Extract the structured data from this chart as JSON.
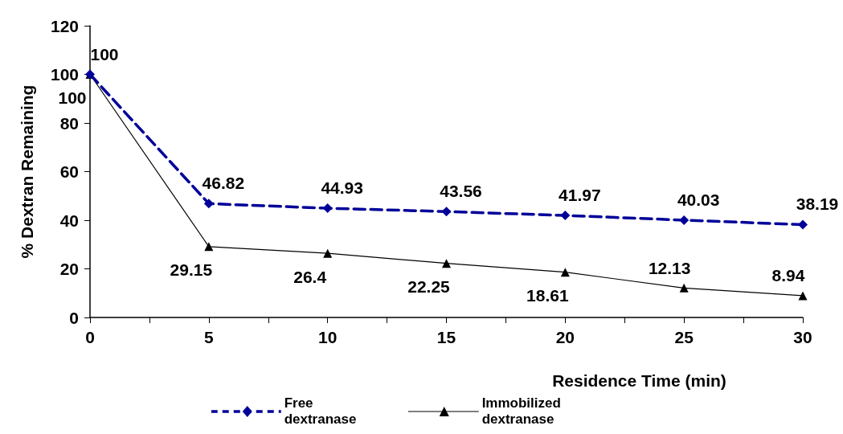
{
  "chart_data": {
    "type": "line",
    "xlabel": "Residence Time (min)",
    "ylabel": "% Dextran Remaining",
    "x": [
      0,
      5,
      10,
      15,
      20,
      25,
      30
    ],
    "series": [
      {
        "name": "Free dextranase",
        "color": "#000099",
        "marker": "diamond",
        "line_style": "dashed",
        "values": [
          100,
          46.82,
          44.93,
          43.56,
          41.97,
          40.03,
          38.19
        ]
      },
      {
        "name": "Immobilized dextranase",
        "color": "#000000",
        "marker": "triangle",
        "line_style": "solid",
        "values": [
          100,
          29.15,
          26.4,
          22.25,
          18.61,
          12.13,
          8.94
        ]
      }
    ],
    "xlim": [
      0,
      30
    ],
    "xticks": [
      0,
      {
        "value": 2.5,
        "label": null
      },
      5,
      {
        "value": 7.5,
        "label": null
      },
      10,
      {
        "value": 12.5,
        "label": null
      },
      15,
      {
        "value": 17.5,
        "label": null
      },
      20,
      {
        "value": 22.5,
        "label": null
      },
      25,
      {
        "value": 27.5,
        "label": null
      },
      30
    ],
    "ylim": [
      0,
      120
    ],
    "yticks": [
      0,
      20,
      40,
      60,
      80,
      100,
      120
    ],
    "data_labels": true,
    "grid": false,
    "legend": "bottom"
  }
}
